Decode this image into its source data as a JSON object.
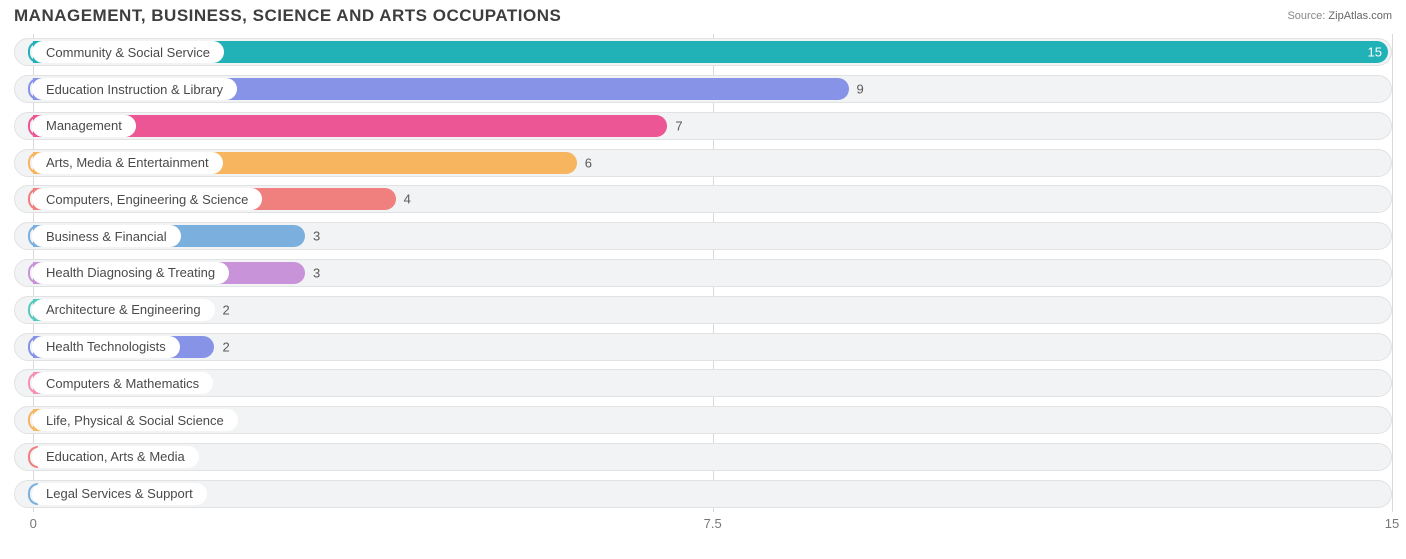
{
  "header": {
    "title": "MANAGEMENT, BUSINESS, SCIENCE AND ARTS OCCUPATIONS",
    "source_label": "Source:",
    "source_value": "ZipAtlas.com"
  },
  "chart": {
    "type": "bar-horizontal",
    "xlim": [
      0,
      15
    ],
    "xticks": [
      0,
      7.5,
      15
    ],
    "background_color": "#ffffff",
    "track_fill": "#f2f3f4",
    "track_border": "#e1e2e3",
    "grid_color": "#d9d9d9",
    "label_fontsize": 13,
    "value_fontsize": 13,
    "title_fontsize": 17,
    "bar_origin_pct": 1.4,
    "rows": [
      {
        "label": "Community & Social Service",
        "value": 15,
        "color": "#21b2b7"
      },
      {
        "label": "Education Instruction & Library",
        "value": 9,
        "color": "#8693e6"
      },
      {
        "label": "Management",
        "value": 7,
        "color": "#ed5694"
      },
      {
        "label": "Arts, Media & Entertainment",
        "value": 6,
        "color": "#f7b55f"
      },
      {
        "label": "Computers, Engineering & Science",
        "value": 4,
        "color": "#f0807e"
      },
      {
        "label": "Business & Financial",
        "value": 3,
        "color": "#7bb0de"
      },
      {
        "label": "Health Diagnosing & Treating",
        "value": 3,
        "color": "#c893d9"
      },
      {
        "label": "Architecture & Engineering",
        "value": 2,
        "color": "#59c9bd"
      },
      {
        "label": "Health Technologists",
        "value": 2,
        "color": "#8693e6"
      },
      {
        "label": "Computers & Mathematics",
        "value": 1,
        "color": "#f492b6"
      },
      {
        "label": "Life, Physical & Social Science",
        "value": 1,
        "color": "#f7b55f"
      },
      {
        "label": "Education, Arts & Media",
        "value": 0,
        "color": "#f0807e"
      },
      {
        "label": "Legal Services & Support",
        "value": 0,
        "color": "#7bb0de"
      }
    ]
  }
}
